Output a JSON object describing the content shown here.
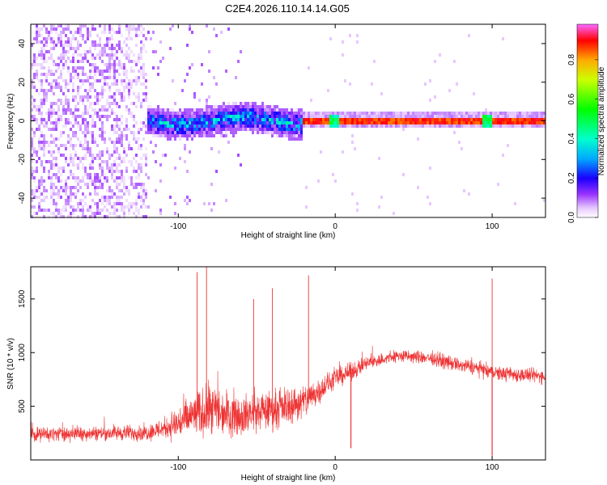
{
  "title": "C2E4.2026.110.14.14.G05",
  "chart_data": [
    {
      "type": "heatmap",
      "xlabel": "Height of straight line (km)",
      "ylabel": "Frequency (Hz)",
      "xlim": [
        -194,
        134
      ],
      "ylim": [
        -50,
        50
      ],
      "xticks": [
        -100,
        0,
        100
      ],
      "yticks": [
        -40,
        -20,
        0,
        20,
        40
      ],
      "colorbar": {
        "label": "Normalized spectral amplitude",
        "range": [
          0,
          0.98
        ],
        "ticks": [
          0.0,
          0.2,
          0.4,
          0.6,
          0.8
        ],
        "tick_labels": [
          "0.0",
          "0.2",
          "0.4",
          "0.6",
          "0.8"
        ],
        "stops": [
          {
            "v": 0.0,
            "color": "#ffffff"
          },
          {
            "v": 0.05,
            "color": "#e6c8ff"
          },
          {
            "v": 0.12,
            "color": "#9933ff"
          },
          {
            "v": 0.2,
            "color": "#1a00ff"
          },
          {
            "v": 0.3,
            "color": "#00aaff"
          },
          {
            "v": 0.4,
            "color": "#00ffcc"
          },
          {
            "v": 0.55,
            "color": "#00ff00"
          },
          {
            "v": 0.7,
            "color": "#ccff00"
          },
          {
            "v": 0.8,
            "color": "#ffaa00"
          },
          {
            "v": 0.9,
            "color": "#ff0000"
          },
          {
            "v": 0.98,
            "color": "#ff66ff"
          }
        ]
      },
      "regions": [
        {
          "name": "noise",
          "x": [
            -194,
            -120
          ],
          "amplitude": 0.1,
          "drift": "diagonal streaks"
        },
        {
          "name": "emerging-signal",
          "x": [
            -120,
            -20
          ],
          "center_freq": 0,
          "spread_hz": 8,
          "amplitude": 0.35
        },
        {
          "name": "steady-signal",
          "x": [
            -20,
            134
          ],
          "center_freq": 0,
          "amplitude": 0.92,
          "dips_at": [
            0,
            97
          ]
        }
      ]
    },
    {
      "type": "line",
      "color": "#ee3333",
      "xlabel": "Height of straight line (km)",
      "ylabel": "SNR (10 * v/v)",
      "xlim": [
        -194,
        134
      ],
      "ylim": [
        0,
        1800
      ],
      "xticks": [
        -100,
        0,
        100
      ],
      "yticks": [
        500,
        1000,
        1500
      ],
      "series": [
        {
          "name": "SNR",
          "x": [
            -194,
            -150,
            -120,
            -108,
            -100,
            -90,
            -80,
            -60,
            -40,
            -20,
            -10,
            0,
            10,
            20,
            40,
            60,
            80,
            90,
            98,
            100,
            102,
            110,
            134
          ],
          "mean": [
            240,
            250,
            255,
            300,
            340,
            420,
            460,
            420,
            470,
            540,
            650,
            760,
            820,
            900,
            970,
            950,
            880,
            860,
            820,
            820,
            810,
            800,
            780
          ],
          "spread": [
            100,
            100,
            110,
            150,
            250,
            300,
            360,
            280,
            260,
            250,
            180,
            140,
            120,
            100,
            90,
            90,
            100,
            100,
            100,
            100,
            100,
            100,
            100
          ],
          "spikes": [
            {
              "x": -88,
              "y": 1750
            },
            {
              "x": -82,
              "y": 1800
            },
            {
              "x": -52,
              "y": 1500
            },
            {
              "x": -40,
              "y": 1600
            },
            {
              "x": -17,
              "y": 1720
            },
            {
              "x": 100,
              "y": 1690
            }
          ],
          "dips": [
            {
              "x": 10,
              "y": 110
            },
            {
              "x": 100,
              "y": 40
            }
          ]
        }
      ]
    }
  ]
}
